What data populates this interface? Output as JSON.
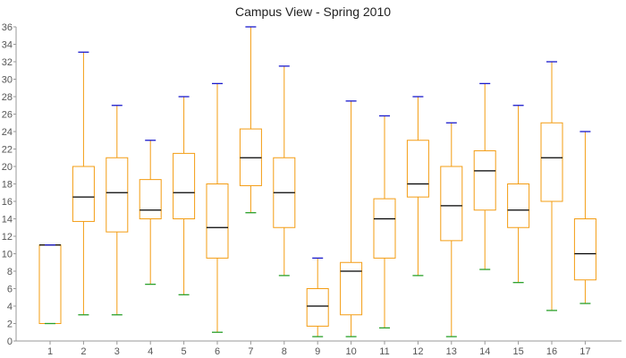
{
  "chart_data": {
    "type": "box",
    "title": "Campus View - Spring 2010",
    "xlabel": "",
    "ylabel": "",
    "ylim": [
      0,
      36
    ],
    "y_ticks": [
      0,
      2,
      4,
      6,
      8,
      10,
      12,
      14,
      16,
      18,
      20,
      22,
      24,
      26,
      28,
      30,
      32,
      34,
      36
    ],
    "grid": false,
    "categories": [
      "1",
      "2",
      "3",
      "4",
      "5",
      "6",
      "7",
      "8",
      "9",
      "10",
      "11",
      "12",
      "13",
      "14",
      "15",
      "16",
      "17"
    ],
    "boxes": [
      {
        "min": 2.0,
        "q1": 2.0,
        "median": 11.0,
        "q3": 11.0,
        "max": 11.0
      },
      {
        "min": 3.0,
        "q1": 13.7,
        "median": 16.5,
        "q3": 20.0,
        "max": 33.1
      },
      {
        "min": 3.0,
        "q1": 12.5,
        "median": 17.0,
        "q3": 21.0,
        "max": 27.0
      },
      {
        "min": 6.5,
        "q1": 14.0,
        "median": 15.0,
        "q3": 18.5,
        "max": 23.0
      },
      {
        "min": 5.3,
        "q1": 14.0,
        "median": 17.0,
        "q3": 21.5,
        "max": 28.0
      },
      {
        "min": 1.0,
        "q1": 9.5,
        "median": 13.0,
        "q3": 18.0,
        "max": 29.5
      },
      {
        "min": 14.7,
        "q1": 17.8,
        "median": 21.0,
        "q3": 24.3,
        "max": 36.0
      },
      {
        "min": 7.5,
        "q1": 13.0,
        "median": 17.0,
        "q3": 21.0,
        "max": 31.5
      },
      {
        "min": 0.5,
        "q1": 1.7,
        "median": 4.0,
        "q3": 6.0,
        "max": 9.5
      },
      {
        "min": 0.5,
        "q1": 3.0,
        "median": 8.0,
        "q3": 9.0,
        "max": 27.5
      },
      {
        "min": 1.5,
        "q1": 9.5,
        "median": 14.0,
        "q3": 16.3,
        "max": 25.8
      },
      {
        "min": 7.5,
        "q1": 16.5,
        "median": 18.0,
        "q3": 23.0,
        "max": 28.0
      },
      {
        "min": 0.5,
        "q1": 11.5,
        "median": 15.5,
        "q3": 20.0,
        "max": 25.0
      },
      {
        "min": 8.2,
        "q1": 15.0,
        "median": 19.5,
        "q3": 21.8,
        "max": 29.5
      },
      {
        "min": 6.7,
        "q1": 13.0,
        "median": 15.0,
        "q3": 18.0,
        "max": 27.0
      },
      {
        "min": 3.5,
        "q1": 16.0,
        "median": 21.0,
        "q3": 25.0,
        "max": 32.0
      },
      {
        "min": 4.3,
        "q1": 7.0,
        "median": 10.0,
        "q3": 14.0,
        "max": 24.0
      }
    ]
  },
  "colors": {
    "box_stroke": "#f39c12",
    "whisker_stroke": "#f39c12",
    "median_stroke": "#000000",
    "max_cap": "#1a1acc",
    "min_cap": "#2aa02a",
    "axis": "#999999",
    "text": "#555555"
  }
}
